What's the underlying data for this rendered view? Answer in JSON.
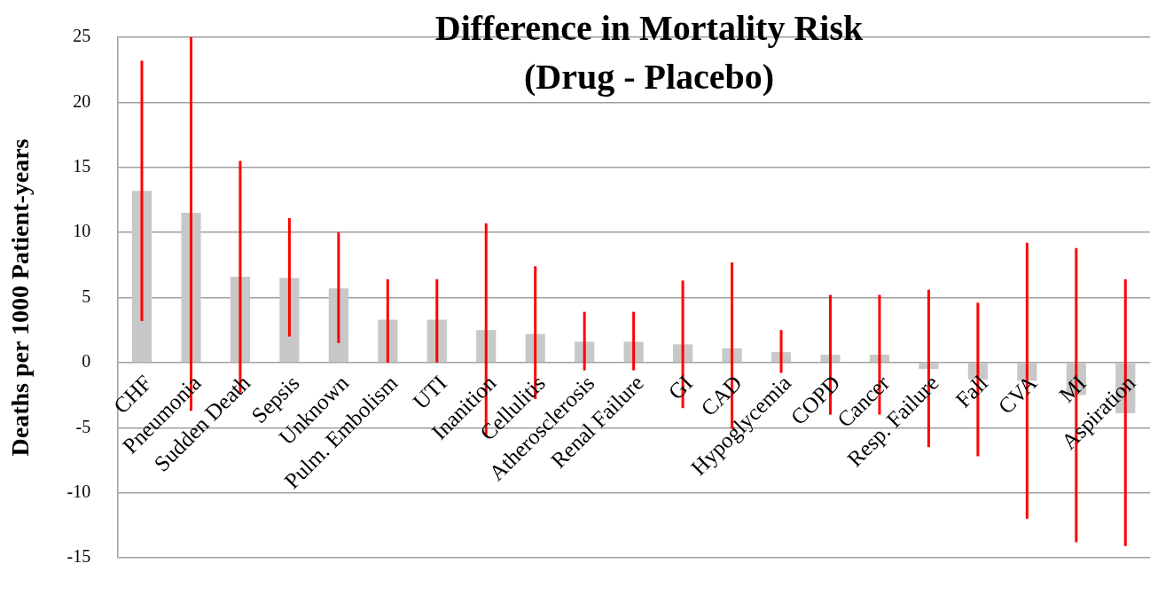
{
  "chart_data": {
    "type": "bar",
    "title": "Difference in Mortality Risk",
    "subtitle": "(Drug - Placebo)",
    "ylabel": "Deaths per 1000 Patient-years",
    "categories": [
      "CHF",
      "Pneumonia",
      "Sudden Death",
      "Sepsis",
      "Unknown",
      "Pulm. Embolism",
      "UTI",
      "Inanition",
      "Cellulitis",
      "Atherosclerosis",
      "Renal Failure",
      "GI",
      "CAD",
      "Hypoglycemia",
      "COPD",
      "Cancer",
      "Resp. Failure",
      "Fall",
      "CVA",
      "MI",
      "Aspiration"
    ],
    "values": [
      13.2,
      11.5,
      6.6,
      6.5,
      5.7,
      3.3,
      3.3,
      2.5,
      2.2,
      1.6,
      1.6,
      1.4,
      1.1,
      0.8,
      0.6,
      0.6,
      -0.5,
      -1.3,
      -1.4,
      -2.5,
      -3.9
    ],
    "errors": [
      [
        3.2,
        23.2
      ],
      [
        -3.7,
        25
      ],
      [
        -2.3,
        15.5
      ],
      [
        2.0,
        11.1
      ],
      [
        1.5,
        10.0
      ],
      [
        0.0,
        6.4
      ],
      [
        0.0,
        6.4
      ],
      [
        -5.7,
        10.7
      ],
      [
        -2.8,
        7.4
      ],
      [
        -0.6,
        3.9
      ],
      [
        -0.6,
        3.9
      ],
      [
        -3.5,
        6.3
      ],
      [
        -5.1,
        7.7
      ],
      [
        -0.8,
        2.5
      ],
      [
        -4.0,
        5.2
      ],
      [
        -4.0,
        5.2
      ],
      [
        -6.5,
        5.6
      ],
      [
        -7.2,
        4.6
      ],
      [
        -12.0,
        9.2
      ],
      [
        -13.8,
        8.8
      ],
      [
        -14.1,
        6.4
      ]
    ],
    "color": "#c8c8c8",
    "ylim": [
      -15,
      25
    ],
    "yticks": [
      -15,
      -10,
      -5,
      0,
      5,
      10,
      15,
      20,
      25
    ],
    "grid": "y",
    "legend": false
  }
}
